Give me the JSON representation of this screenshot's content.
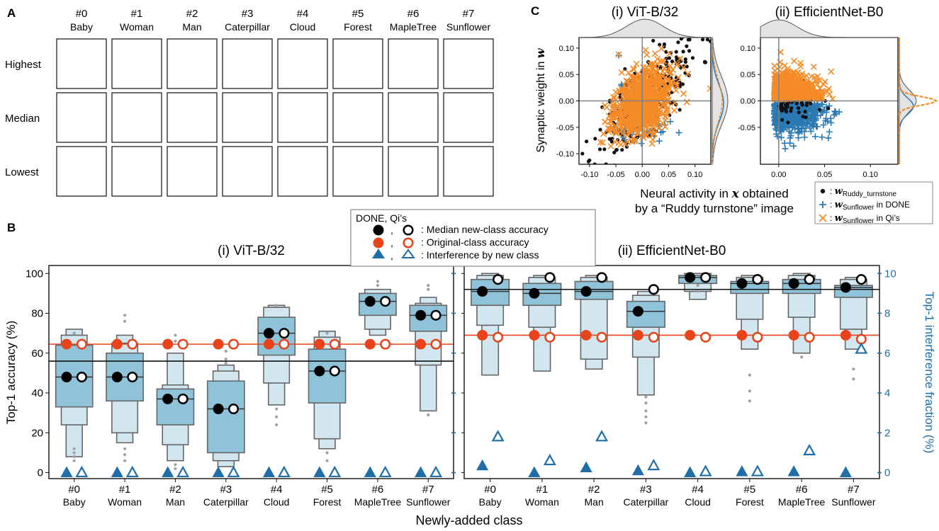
{
  "colors": {
    "box_dark": "#8fc3d9",
    "box_light": "#d2e6f0",
    "box_outline": "#666666",
    "orange": "#e8431a",
    "blue": "#1f6ea8",
    "scatter_orange": "#f58b27",
    "scatter_blue": "#2b79b3",
    "outlier": "#a0a0a0"
  },
  "panel_a": {
    "label": "A",
    "classes": [
      {
        "num": "#0",
        "name": "Baby"
      },
      {
        "num": "#1",
        "name": "Woman"
      },
      {
        "num": "#2",
        "name": "Man"
      },
      {
        "num": "#3",
        "name": "Caterpillar"
      },
      {
        "num": "#4",
        "name": "Cloud"
      },
      {
        "num": "#5",
        "name": "Forest"
      },
      {
        "num": "#6",
        "name": "MapleTree"
      },
      {
        "num": "#7",
        "name": "Sunflower"
      }
    ],
    "rows": [
      "Highest",
      "Median",
      "Lowest"
    ]
  },
  "panel_b": {
    "label": "B",
    "legend": {
      "title": "DONE, Qi’s",
      "separator": ",",
      "entries": [
        {
          "text": ": Median new-class accuracy"
        },
        {
          "text": ": Original-class accuracy"
        },
        {
          "text": ": Interference by new class"
        }
      ]
    },
    "ylabel_left": "Top-1 accuracy (%)",
    "ylabel_right": "Top-1 interference fraction (%)",
    "xlabel": "Newly-added class",
    "left_ticks": [
      "0",
      "20",
      "40",
      "60",
      "80",
      "100"
    ],
    "right_ticks": [
      "0",
      "2",
      "4",
      "6",
      "8",
      "10"
    ]
  },
  "chart_data": [
    {
      "type": "boxen",
      "title": "(i) ViT-B/32",
      "categories": [
        "#0 Baby",
        "#1 Woman",
        "#2 Man",
        "#3 Caterpillar",
        "#4 Cloud",
        "#5 Forest",
        "#6 MapleTree",
        "#7 Sunflower"
      ],
      "ylabel": "Top-1 accuracy (%)",
      "ylim": [
        -3,
        104
      ],
      "y2label": "Top-1 interference fraction (%)",
      "y2lim": [
        -0.3,
        10.4
      ],
      "boxes": [
        {
          "q": [
            [
              8,
              72
            ],
            [
              24,
              69
            ],
            [
              33,
              64
            ]
          ],
          "median": 48
        },
        {
          "q": [
            [
              15,
              69
            ],
            [
              20,
              65
            ],
            [
              36,
              60
            ]
          ],
          "median": 48
        },
        {
          "q": [
            [
              6,
              60
            ],
            [
              14,
              44
            ],
            [
              24,
              42
            ]
          ],
          "median": 37
        },
        {
          "q": [
            [
              3,
              54
            ],
            [
              6,
              51
            ],
            [
              10,
              46
            ]
          ],
          "median": 32
        },
        {
          "q": [
            [
              34,
              84
            ],
            [
              45,
              83
            ],
            [
              59,
              78
            ]
          ],
          "median": 70
        },
        {
          "q": [
            [
              12,
              71
            ],
            [
              17,
              68
            ],
            [
              35,
              62
            ]
          ],
          "median": 51
        },
        {
          "q": [
            [
              69,
              92
            ],
            [
              72,
              92
            ],
            [
              79,
              90
            ]
          ],
          "median": 86
        },
        {
          "q": [
            [
              31,
              88
            ],
            [
              54,
              85
            ],
            [
              71,
              84
            ]
          ],
          "median": 79
        }
      ],
      "outliers": [
        [
          6,
          8,
          10,
          12,
          70
        ],
        [
          6,
          9,
          12,
          76,
          79
        ],
        [
          2,
          4,
          66,
          69
        ],
        [
          55,
          57,
          61
        ],
        [
          24,
          28,
          32,
          84
        ],
        [
          6,
          10,
          70
        ],
        [
          94,
          96
        ],
        [
          29,
          92,
          94
        ]
      ],
      "series": [
        {
          "name": "DONE median new-class accuracy",
          "axis": "left",
          "values": [
            48,
            48,
            37,
            32,
            70,
            51,
            86,
            79
          ]
        },
        {
          "name": "Qi's median new-class accuracy",
          "axis": "left",
          "values": [
            48,
            48,
            37,
            32,
            70,
            51,
            86,
            79
          ]
        },
        {
          "name": "DONE original-class accuracy",
          "axis": "left",
          "values": [
            64.5,
            64.5,
            64.5,
            64.5,
            64.5,
            64.5,
            64.5,
            64.5
          ]
        },
        {
          "name": "Qi's original-class accuracy",
          "axis": "left",
          "values": [
            64.5,
            64.5,
            64.5,
            64.5,
            64.5,
            64.5,
            64.5,
            64.5
          ]
        },
        {
          "name": "DONE interference by new class",
          "axis": "right",
          "values": [
            0,
            0,
            0,
            0,
            0,
            0,
            0,
            0
          ]
        },
        {
          "name": "Qi's interference by new class",
          "axis": "right",
          "values": [
            0,
            0,
            0,
            0,
            0,
            0,
            0,
            0
          ]
        }
      ],
      "reference_lines": {
        "original_accuracy": 64.5,
        "mean_new_class": 56
      }
    },
    {
      "type": "boxen",
      "title": "(ii) EfficientNet-B0",
      "categories": [
        "#0 Baby",
        "#1 Woman",
        "#2 Man",
        "#3 Caterpillar",
        "#4 Cloud",
        "#5 Forest",
        "#6 MapleTree",
        "#7 Sunflower"
      ],
      "ylabel": "Top-1 accuracy (%)",
      "ylim": [
        -3,
        104
      ],
      "y2label": "Top-1 interference fraction (%)",
      "y2lim": [
        -0.3,
        10.4
      ],
      "boxes": [
        {
          "q": [
            [
              49,
              100
            ],
            [
              74,
              99
            ],
            [
              84,
              97
            ]
          ],
          "median": 91
        },
        {
          "q": [
            [
              51,
              99
            ],
            [
              73,
              98
            ],
            [
              84,
              95
            ]
          ],
          "median": 90
        },
        {
          "q": [
            [
              52,
              99
            ],
            [
              57,
              98
            ],
            [
              87,
              96
            ]
          ],
          "median": 91
        },
        {
          "q": [
            [
              39,
              91
            ],
            [
              58,
              89
            ],
            [
              73,
              86
            ]
          ],
          "median": 81
        },
        {
          "q": [
            [
              87,
              100
            ],
            [
              91,
              100
            ],
            [
              95,
              99
            ]
          ],
          "median": 98
        },
        {
          "q": [
            [
              62,
              99
            ],
            [
              77,
              98
            ],
            [
              90,
              96
            ]
          ],
          "median": 95
        },
        {
          "q": [
            [
              60,
              100
            ],
            [
              78,
              99
            ],
            [
              90,
              97
            ]
          ],
          "median": 95
        },
        {
          "q": [
            [
              62,
              98
            ],
            [
              72,
              97
            ],
            [
              88,
              94
            ]
          ],
          "median": 93
        }
      ],
      "outliers": [
        [],
        [],
        [],
        [
          25,
          28,
          31,
          35,
          38
        ],
        [
          91,
          94
        ],
        [
          36,
          41,
          49
        ],
        [
          58
        ],
        [
          47,
          52
        ]
      ],
      "series": [
        {
          "name": "DONE median new-class accuracy",
          "axis": "left",
          "values": [
            91,
            90,
            91,
            81,
            98,
            95,
            95,
            93
          ]
        },
        {
          "name": "Qi's median new-class accuracy",
          "axis": "left",
          "values": [
            97,
            98,
            98,
            92,
            98,
            97,
            97,
            97
          ]
        },
        {
          "name": "DONE original-class accuracy",
          "axis": "left",
          "values": [
            69,
            69,
            69,
            69,
            69,
            69,
            69,
            69
          ]
        },
        {
          "name": "Qi's original-class accuracy",
          "axis": "left",
          "values": [
            68,
            68,
            68,
            68,
            68,
            68,
            68,
            67
          ]
        },
        {
          "name": "DONE interference by new class",
          "axis": "right",
          "values": [
            0.35,
            0.0,
            0.25,
            0.1,
            0.0,
            0.05,
            0.05,
            0.0
          ]
        },
        {
          "name": "Qi's interference by new class",
          "axis": "right",
          "values": [
            1.8,
            0.6,
            1.8,
            0.35,
            0.05,
            0.05,
            1.1,
            6.2
          ]
        }
      ],
      "reference_lines": {
        "original_accuracy": 69,
        "mean_new_class": 92
      }
    },
    {
      "type": "scatter",
      "title": "(i) ViT-B/32",
      "ylabel": "Synaptic weight in w",
      "xlabel": "Neural activity in x obtained by a “Ruddy turnstone” image",
      "xlim": [
        -0.12,
        0.13
      ],
      "ylim": [
        -0.12,
        0.12
      ],
      "xticks": [
        "-0.10",
        "-0.05",
        "0.00",
        "0.05",
        "0.10"
      ],
      "yticks": [
        "-0.10",
        "-0.05",
        "0.00",
        "0.05",
        "0.10"
      ],
      "series": [
        {
          "name": "w_Ruddy_turnstone",
          "marker": "dot",
          "x_range": [
            -0.11,
            0.11
          ],
          "y_range": [
            -0.11,
            0.11
          ],
          "correlation": "positive"
        },
        {
          "name": "w_Sunflower in Qi's",
          "marker": "x",
          "x_range": [
            -0.1,
            0.09
          ],
          "y_range": [
            -0.11,
            0.11
          ],
          "correlation": "positive"
        },
        {
          "name": "w_Sunflower in DONE",
          "marker": "plus",
          "x_range": [
            -0.05,
            0.06
          ],
          "y_range": [
            -0.11,
            0.05
          ]
        }
      ]
    },
    {
      "type": "scatter",
      "title": "(ii) EfficientNet-B0",
      "xlim": [
        -0.02,
        0.13
      ],
      "ylim": [
        -0.12,
        0.12
      ],
      "xticks": [
        "0.00",
        "0.05",
        "0.10"
      ],
      "yticks": [
        "-0.05",
        "0.00",
        "0.05",
        "0.10"
      ],
      "series": [
        {
          "name": "w_Sunflower in DONE",
          "marker": "plus",
          "x_range": [
            -0.01,
            0.12
          ],
          "y_range": [
            -0.08,
            0.01
          ]
        },
        {
          "name": "w_Sunflower in Qi's",
          "marker": "x",
          "x_range": [
            -0.01,
            0.12
          ],
          "y_range": [
            -0.01,
            0.12
          ]
        },
        {
          "name": "w_Ruddy_turnstone",
          "marker": "dot",
          "x_range": [
            0.0,
            0.08
          ],
          "y_range": [
            -0.03,
            0.03
          ]
        }
      ]
    }
  ],
  "panel_c": {
    "label": "C",
    "ylabel": "Synaptic weight in w",
    "ylabel_main": "Synaptic weight in ",
    "ylabel_var": "w",
    "xlabel_line1_main": "Neural activity in ",
    "xlabel_line1_var": "x",
    "xlabel_line1_end": " obtained",
    "xlabel_line2": "by a “Ruddy turnstone” image",
    "legend": [
      {
        "main": "w",
        "sub": "Ruddy_turnstone",
        "suffix": ""
      },
      {
        "main": "w",
        "sub": "Sunflower",
        "suffix": " in DONE"
      },
      {
        "main": "w",
        "sub": "Sunflower",
        "suffix": " in Qi’s"
      }
    ],
    "legend_colon": ":"
  }
}
